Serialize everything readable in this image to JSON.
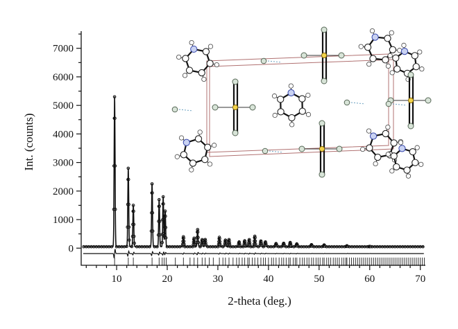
{
  "chart_data": {
    "type": "scatter",
    "title": "",
    "xlabel": "2-theta (deg.)",
    "ylabel": "Int. (counts)",
    "xlim": [
      3,
      71
    ],
    "ylim": [
      -600,
      7600
    ],
    "x_ticks": [
      10,
      20,
      30,
      40,
      50,
      60,
      70
    ],
    "y_ticks": [
      0,
      1000,
      2000,
      3000,
      4000,
      5000,
      6000,
      7000
    ],
    "x_minor_step": 2,
    "y_minor_step": 500,
    "grid": false,
    "legend": "none",
    "background": 50,
    "difference_offset": -190,
    "bragg_band": [
      -330,
      -620
    ],
    "peaks": [
      {
        "x": 9.6,
        "y": 5300
      },
      {
        "x": 12.3,
        "y": 2800
      },
      {
        "x": 13.3,
        "y": 1500
      },
      {
        "x": 17.0,
        "y": 2250
      },
      {
        "x": 18.4,
        "y": 1700
      },
      {
        "x": 19.2,
        "y": 1800
      },
      {
        "x": 19.6,
        "y": 1300
      },
      {
        "x": 23.2,
        "y": 400
      },
      {
        "x": 25.3,
        "y": 350
      },
      {
        "x": 26.0,
        "y": 650
      },
      {
        "x": 26.9,
        "y": 300
      },
      {
        "x": 27.5,
        "y": 300
      },
      {
        "x": 30.3,
        "y": 380
      },
      {
        "x": 31.5,
        "y": 280
      },
      {
        "x": 32.2,
        "y": 300
      },
      {
        "x": 34.2,
        "y": 220
      },
      {
        "x": 35.3,
        "y": 260
      },
      {
        "x": 36.2,
        "y": 300
      },
      {
        "x": 37.3,
        "y": 420
      },
      {
        "x": 38.5,
        "y": 250
      },
      {
        "x": 39.4,
        "y": 220
      },
      {
        "x": 41.5,
        "y": 160
      },
      {
        "x": 43.0,
        "y": 170
      },
      {
        "x": 44.3,
        "y": 200
      },
      {
        "x": 45.6,
        "y": 150
      },
      {
        "x": 48.5,
        "y": 120
      },
      {
        "x": 51.0,
        "y": 110
      },
      {
        "x": 55.5,
        "y": 80
      },
      {
        "x": 60.0,
        "y": 60
      }
    ],
    "bragg_positions": [
      9.6,
      12.3,
      13.3,
      17.0,
      18.4,
      19.0,
      19.4,
      19.8,
      21.6,
      23.2,
      24.5,
      25.3,
      26.0,
      26.9,
      27.5,
      28.3,
      29.1,
      30.3,
      31.0,
      31.5,
      32.2,
      33.0,
      33.7,
      34.2,
      34.8,
      35.3,
      35.9,
      36.2,
      36.8,
      37.3,
      37.9,
      38.5,
      39.0,
      39.4,
      40.0,
      40.6,
      41.0,
      41.5,
      42.1,
      42.6,
      43.0,
      43.5,
      44.0,
      44.3,
      44.9,
      45.3,
      45.6,
      46.2,
      46.7,
      47.1,
      47.6,
      48.0,
      48.5,
      48.9,
      49.4,
      49.8,
      50.2,
      50.7,
      51.0,
      51.5,
      51.9,
      52.3,
      52.8,
      53.2,
      53.6,
      54.0,
      54.5,
      54.9,
      55.3,
      55.5,
      56.0,
      56.4,
      56.8,
      57.2,
      57.6,
      58.0,
      58.4,
      58.8,
      59.2,
      59.6,
      60.0,
      60.4,
      60.8,
      61.2,
      61.6,
      62.0,
      62.4,
      62.8,
      63.2,
      63.6,
      64.0,
      64.4,
      64.8,
      65.2,
      65.6,
      66.0,
      66.4,
      66.8,
      67.2,
      67.6,
      68.0,
      68.4,
      68.8,
      69.2,
      69.6,
      70.0,
      70.4,
      70.8
    ]
  }
}
